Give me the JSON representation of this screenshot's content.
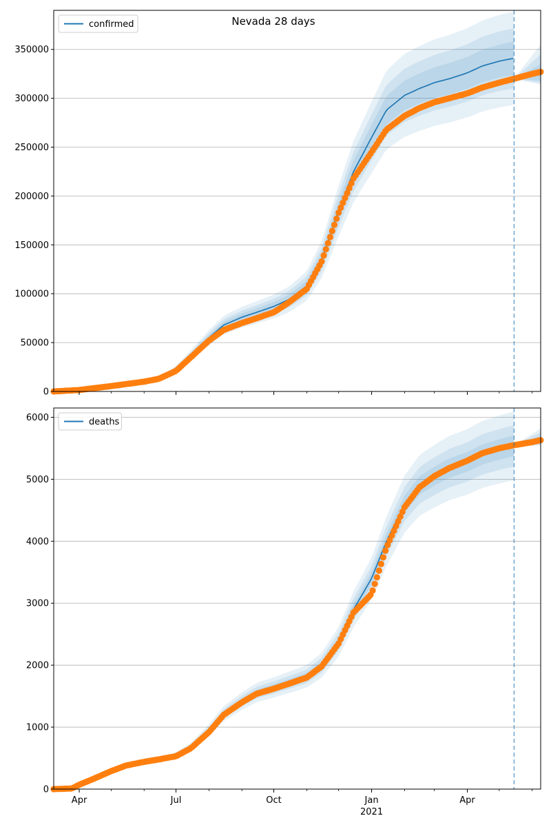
{
  "figure": {
    "title": "Nevada 28 days"
  },
  "styles": {
    "model_color": "#1f77b4",
    "observed_color": "#ff7f0e",
    "band_color": "#1f77b4",
    "grid_color": "#b0b0b0",
    "vline_color": "#1f77b4"
  },
  "chart_data": [
    {
      "type": "line",
      "legend": [
        "confirmed"
      ],
      "legend_position": "top-left",
      "grid": "horizontal",
      "x_axis": {
        "type": "date",
        "range": [
          "2020-03-08",
          "2021-06-09"
        ],
        "major_ticks": [
          {
            "date": "2020-04-01",
            "label": "Apr"
          },
          {
            "date": "2020-07-01",
            "label": "Jul"
          },
          {
            "date": "2020-10-01",
            "label": "Oct"
          },
          {
            "date": "2021-01-01",
            "label": "Jan"
          },
          {
            "date": "2021-04-01",
            "label": "Apr"
          }
        ],
        "year_label": {
          "date": "2021-01-01",
          "label": "2021"
        },
        "tick_labels_visible": false
      },
      "ylim": [
        0,
        390000
      ],
      "yticks": [
        0,
        50000,
        100000,
        150000,
        200000,
        250000,
        300000,
        350000
      ],
      "forecast_start": "2021-05-15",
      "series": [
        {
          "name": "confirmed",
          "kind": "model_line",
          "points": [
            [
              "2020-03-08",
              0
            ],
            [
              "2020-04-01",
              1500
            ],
            [
              "2020-05-01",
              5500
            ],
            [
              "2020-06-01",
              10000
            ],
            [
              "2020-06-15",
              13000
            ],
            [
              "2020-07-01",
              23000
            ],
            [
              "2020-07-15",
              37000
            ],
            [
              "2020-08-01",
              55000
            ],
            [
              "2020-08-15",
              68000
            ],
            [
              "2020-09-01",
              76000
            ],
            [
              "2020-09-15",
              81000
            ],
            [
              "2020-10-01",
              87000
            ],
            [
              "2020-10-15",
              94000
            ],
            [
              "2020-11-01",
              108000
            ],
            [
              "2020-11-15",
              135000
            ],
            [
              "2020-12-01",
              185000
            ],
            [
              "2020-12-15",
              225000
            ],
            [
              "2021-01-01",
              260000
            ],
            [
              "2021-01-15",
              288000
            ],
            [
              "2021-02-01",
              303000
            ],
            [
              "2021-02-15",
              310000
            ],
            [
              "2021-03-01",
              316000
            ],
            [
              "2021-03-15",
              320000
            ],
            [
              "2021-04-01",
              326000
            ],
            [
              "2021-04-15",
              333000
            ],
            [
              "2021-05-01",
              338000
            ],
            [
              "2021-05-15",
              341000
            ]
          ]
        },
        {
          "name": "",
          "kind": "observed",
          "points": [
            [
              "2020-03-08",
              0
            ],
            [
              "2020-04-01",
              1500
            ],
            [
              "2020-05-01",
              5500
            ],
            [
              "2020-06-01",
              10000
            ],
            [
              "2020-06-15",
              13000
            ],
            [
              "2020-07-01",
              21000
            ],
            [
              "2020-07-15",
              35000
            ],
            [
              "2020-08-01",
              52000
            ],
            [
              "2020-08-15",
              63000
            ],
            [
              "2020-09-01",
              70000
            ],
            [
              "2020-09-15",
              75000
            ],
            [
              "2020-10-01",
              81000
            ],
            [
              "2020-10-15",
              91000
            ],
            [
              "2020-11-01",
              105000
            ],
            [
              "2020-11-15",
              133000
            ],
            [
              "2020-12-01",
              183000
            ],
            [
              "2020-12-15",
              218000
            ],
            [
              "2021-01-01",
              245000
            ],
            [
              "2021-01-15",
              268000
            ],
            [
              "2021-02-01",
              282000
            ],
            [
              "2021-02-15",
              290000
            ],
            [
              "2021-03-01",
              296000
            ],
            [
              "2021-03-15",
              300000
            ],
            [
              "2021-04-01",
              305000
            ],
            [
              "2021-04-15",
              311000
            ],
            [
              "2021-05-01",
              316000
            ],
            [
              "2021-05-15",
              320000
            ],
            [
              "2021-06-01",
              325000
            ],
            [
              "2021-06-09",
              327000
            ]
          ]
        }
      ],
      "band_width_fractions": [
        0.05,
        0.09,
        0.14
      ],
      "bands_tail": [
        {
          "low": 318000,
          "high": 335000
        },
        {
          "low": 316000,
          "high": 345000
        },
        {
          "low": 314000,
          "high": 355000
        }
      ]
    },
    {
      "type": "line",
      "legend": [
        "deaths"
      ],
      "legend_position": "top-left",
      "grid": "horizontal",
      "x_axis": {
        "type": "date",
        "range": [
          "2020-03-08",
          "2021-06-09"
        ],
        "major_ticks": [
          {
            "date": "2020-04-01",
            "label": "Apr"
          },
          {
            "date": "2020-07-01",
            "label": "Jul"
          },
          {
            "date": "2020-10-01",
            "label": "Oct"
          },
          {
            "date": "2021-01-01",
            "label": "Jan"
          },
          {
            "date": "2021-04-01",
            "label": "Apr"
          }
        ],
        "year_label": {
          "date": "2021-01-01",
          "label": "2021"
        },
        "tick_labels_visible": true
      },
      "ylim": [
        0,
        6150
      ],
      "yticks": [
        0,
        1000,
        2000,
        3000,
        4000,
        5000,
        6000
      ],
      "forecast_start": "2021-05-15",
      "series": [
        {
          "name": "deaths",
          "kind": "model_line",
          "points": [
            [
              "2020-03-08",
              0
            ],
            [
              "2020-03-25",
              10
            ],
            [
              "2020-04-01",
              70
            ],
            [
              "2020-04-15",
              170
            ],
            [
              "2020-05-01",
              290
            ],
            [
              "2020-05-15",
              380
            ],
            [
              "2020-06-01",
              440
            ],
            [
              "2020-06-15",
              480
            ],
            [
              "2020-07-01",
              540
            ],
            [
              "2020-07-15",
              680
            ],
            [
              "2020-08-01",
              950
            ],
            [
              "2020-08-15",
              1220
            ],
            [
              "2020-09-01",
              1420
            ],
            [
              "2020-09-15",
              1560
            ],
            [
              "2020-10-01",
              1640
            ],
            [
              "2020-10-15",
              1720
            ],
            [
              "2020-11-01",
              1820
            ],
            [
              "2020-11-15",
              2000
            ],
            [
              "2020-12-01",
              2380
            ],
            [
              "2020-12-15",
              2900
            ],
            [
              "2021-01-01",
              3400
            ],
            [
              "2021-01-15",
              4000
            ],
            [
              "2021-02-01",
              4600
            ],
            [
              "2021-02-15",
              4900
            ],
            [
              "2021-03-01",
              5050
            ],
            [
              "2021-03-15",
              5180
            ],
            [
              "2021-04-01",
              5280
            ],
            [
              "2021-04-15",
              5400
            ],
            [
              "2021-05-01",
              5480
            ],
            [
              "2021-05-15",
              5540
            ]
          ]
        },
        {
          "name": "",
          "kind": "observed",
          "points": [
            [
              "2020-03-08",
              0
            ],
            [
              "2020-03-25",
              10
            ],
            [
              "2020-04-01",
              70
            ],
            [
              "2020-04-15",
              170
            ],
            [
              "2020-05-01",
              290
            ],
            [
              "2020-05-15",
              380
            ],
            [
              "2020-06-01",
              440
            ],
            [
              "2020-06-15",
              480
            ],
            [
              "2020-07-01",
              530
            ],
            [
              "2020-07-15",
              660
            ],
            [
              "2020-08-01",
              920
            ],
            [
              "2020-08-15",
              1200
            ],
            [
              "2020-09-01",
              1400
            ],
            [
              "2020-09-15",
              1540
            ],
            [
              "2020-10-01",
              1620
            ],
            [
              "2020-10-15",
              1700
            ],
            [
              "2020-11-01",
              1800
            ],
            [
              "2020-11-15",
              1980
            ],
            [
              "2020-12-01",
              2350
            ],
            [
              "2020-12-15",
              2850
            ],
            [
              "2021-01-01",
              3150
            ],
            [
              "2021-01-15",
              3900
            ],
            [
              "2021-02-01",
              4550
            ],
            [
              "2021-02-15",
              4870
            ],
            [
              "2021-03-01",
              5050
            ],
            [
              "2021-03-15",
              5180
            ],
            [
              "2021-04-01",
              5300
            ],
            [
              "2021-04-15",
              5420
            ],
            [
              "2021-05-01",
              5500
            ],
            [
              "2021-05-15",
              5550
            ],
            [
              "2021-06-01",
              5600
            ],
            [
              "2021-06-09",
              5630
            ]
          ]
        }
      ],
      "band_width_fractions": [
        0.03,
        0.06,
        0.1
      ],
      "bands_tail": [
        {
          "low": 5580,
          "high": 5700
        },
        {
          "low": 5560,
          "high": 5760
        },
        {
          "low": 5540,
          "high": 5820
        }
      ]
    }
  ]
}
